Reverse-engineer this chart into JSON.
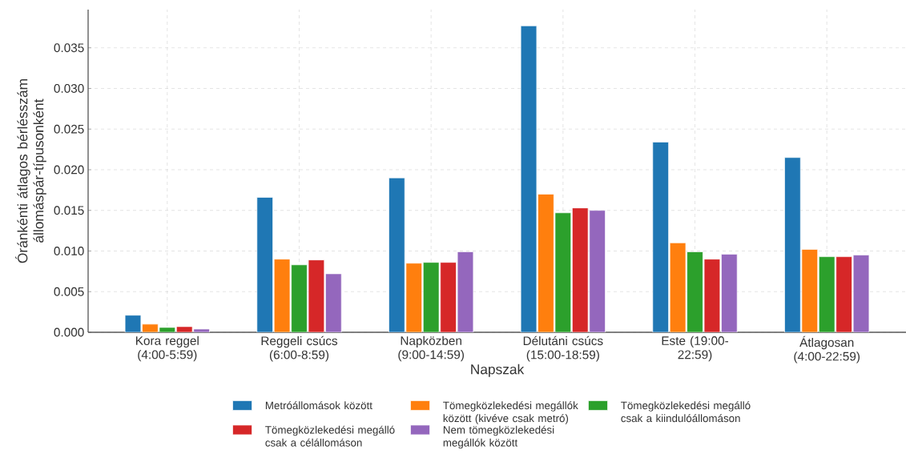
{
  "chart_data": {
    "type": "bar",
    "xlabel": "Napszak",
    "ylabel": "Óránkénti átlagos bérlésszám állomáspár-típusonként",
    "categories": [
      "Kora reggel (4:00-5:59)",
      "Reggeli csúcs (6:00-8:59)",
      "Napközben (9:00-14:59)",
      "Délutáni csúcs (15:00-18:59)",
      "Este (19:00-22:59)",
      "Átlagosan (4:00-22:59)"
    ],
    "series": [
      {
        "name": "Metróállomások között",
        "color": "#1f77b4",
        "values": [
          0.0021,
          0.0166,
          0.019,
          0.0377,
          0.0234,
          0.0215
        ]
      },
      {
        "name": "Tömegközlekedési megállók között (kivéve csak metró)",
        "color": "#ff7f0e",
        "values": [
          0.001,
          0.009,
          0.0085,
          0.017,
          0.011,
          0.0102
        ]
      },
      {
        "name": "Tömegközlekedési megálló csak a kiindulóállomáson",
        "color": "#2ca02c",
        "values": [
          0.0006,
          0.0083,
          0.0086,
          0.0147,
          0.0099,
          0.0093
        ]
      },
      {
        "name": "Tömegközlekedési megálló csak a célállomáson",
        "color": "#d62728",
        "values": [
          0.0007,
          0.0089,
          0.0086,
          0.0153,
          0.009,
          0.0093
        ]
      },
      {
        "name": "Nem tömegközlekedési megállók között",
        "color": "#9467bd",
        "values": [
          0.0004,
          0.0072,
          0.0099,
          0.015,
          0.0096,
          0.0095
        ]
      }
    ],
    "ylim": [
      0,
      0.0397
    ],
    "yticks": [
      {
        "value": 0,
        "label": "0.000"
      },
      {
        "value": 0.005,
        "label": "0.005"
      },
      {
        "value": 0.01,
        "label": "0.010"
      },
      {
        "value": 0.015,
        "label": "0.015"
      },
      {
        "value": 0.02,
        "label": "0.020"
      },
      {
        "value": 0.025,
        "label": "0.025"
      },
      {
        "value": 0.03,
        "label": "0.030"
      },
      {
        "value": 0.035,
        "label": "0.035"
      }
    ],
    "grid": true,
    "legend": "bottom"
  }
}
